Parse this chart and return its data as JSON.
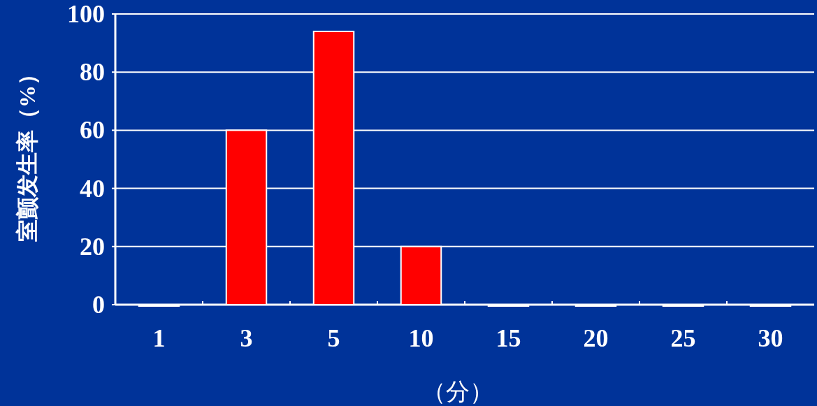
{
  "chart_data": {
    "type": "bar",
    "xlabel": "（分）",
    "ylabel": "室颤发生率（%）",
    "categories": [
      "1",
      "3",
      "5",
      "10",
      "15",
      "20",
      "25",
      "30"
    ],
    "values": [
      0,
      60,
      94,
      20,
      0,
      0,
      0,
      0
    ],
    "color": "#ff0000",
    "ylim": [
      0,
      100
    ],
    "yticks": [
      0,
      20,
      40,
      60,
      80,
      100
    ],
    "grid": "y"
  }
}
